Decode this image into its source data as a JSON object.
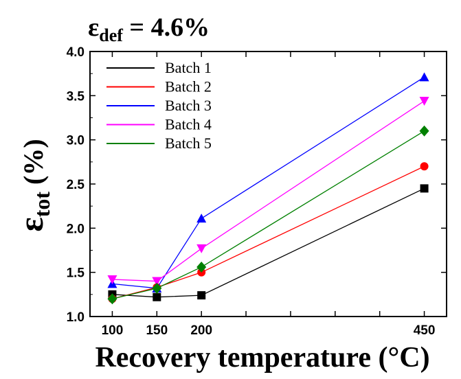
{
  "chart_data": {
    "type": "line",
    "title": "ε",
    "title_sub": "def",
    "title_rest": " = 4.6%",
    "xlabel": "Recovery temperature (°C)",
    "ylabel": "ε",
    "ylabel_sub": "tot",
    "ylabel_rest": "  (%)",
    "x": [
      100,
      150,
      200,
      450
    ],
    "xlim": [
      75,
      475
    ],
    "ylim": [
      1.0,
      4.0
    ],
    "xticks": [
      100,
      150,
      200,
      450
    ],
    "yticks": [
      "1.0",
      "1.5",
      "2.0",
      "2.5",
      "3.0",
      "3.5",
      "4.0"
    ],
    "grid": false,
    "legend_position": "top-left",
    "series": [
      {
        "name": "Batch 1",
        "color": "#000000",
        "marker": "square",
        "values": [
          1.25,
          1.22,
          1.24,
          2.45
        ]
      },
      {
        "name": "Batch 2",
        "color": "#ff0000",
        "marker": "circle",
        "values": [
          1.2,
          1.33,
          1.5,
          2.7
        ]
      },
      {
        "name": "Batch 3",
        "color": "#0000ff",
        "marker": "triangle-up",
        "values": [
          1.37,
          1.32,
          2.11,
          3.71
        ]
      },
      {
        "name": "Batch 4",
        "color": "#ff00ff",
        "marker": "triangle-down",
        "values": [
          1.42,
          1.4,
          1.77,
          3.44
        ]
      },
      {
        "name": "Batch 5",
        "color": "#008000",
        "marker": "diamond",
        "values": [
          1.2,
          1.32,
          1.56,
          3.1
        ]
      }
    ]
  }
}
